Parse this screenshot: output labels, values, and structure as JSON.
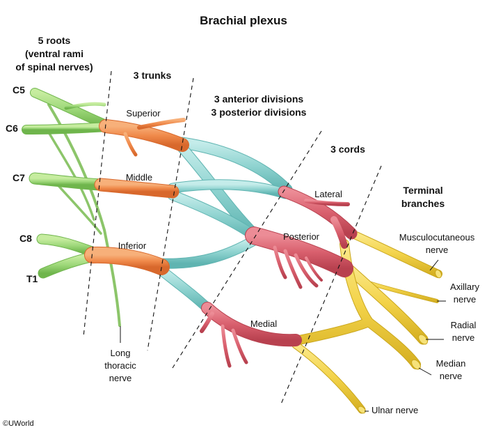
{
  "title": "Brachial plexus",
  "headers": {
    "roots_line1": "5 roots",
    "roots_line2": "(ventral rami",
    "roots_line3": "of spinal nerves)",
    "trunks": "3 trunks",
    "divisions_line1": "3 anterior divisions",
    "divisions_line2": "3 posterior divisions",
    "cords": "3 cords",
    "terminal_line1": "Terminal",
    "terminal_line2": "branches"
  },
  "roots": [
    "C5",
    "C6",
    "C7",
    "C8",
    "T1"
  ],
  "trunks": [
    "Superior",
    "Middle",
    "Inferior"
  ],
  "cords": [
    "Lateral",
    "Posterior",
    "Medial"
  ],
  "long_thoracic": [
    "Long",
    "thoracic",
    "nerve"
  ],
  "terminal_branches": {
    "musculocutaneous": [
      "Musculocutaneous",
      "nerve"
    ],
    "axillary": [
      "Axillary",
      "nerve"
    ],
    "radial": [
      "Radial",
      "nerve"
    ],
    "median": [
      "Median",
      "nerve"
    ],
    "ulnar": [
      "Ulnar nerve"
    ]
  },
  "copyright": "©UWorld",
  "colors": {
    "roots": "#9ed87a",
    "trunks": "#f08a4b",
    "divisions": "#8fd3d0",
    "cords": "#d9606e",
    "branches": "#f3d34a"
  }
}
